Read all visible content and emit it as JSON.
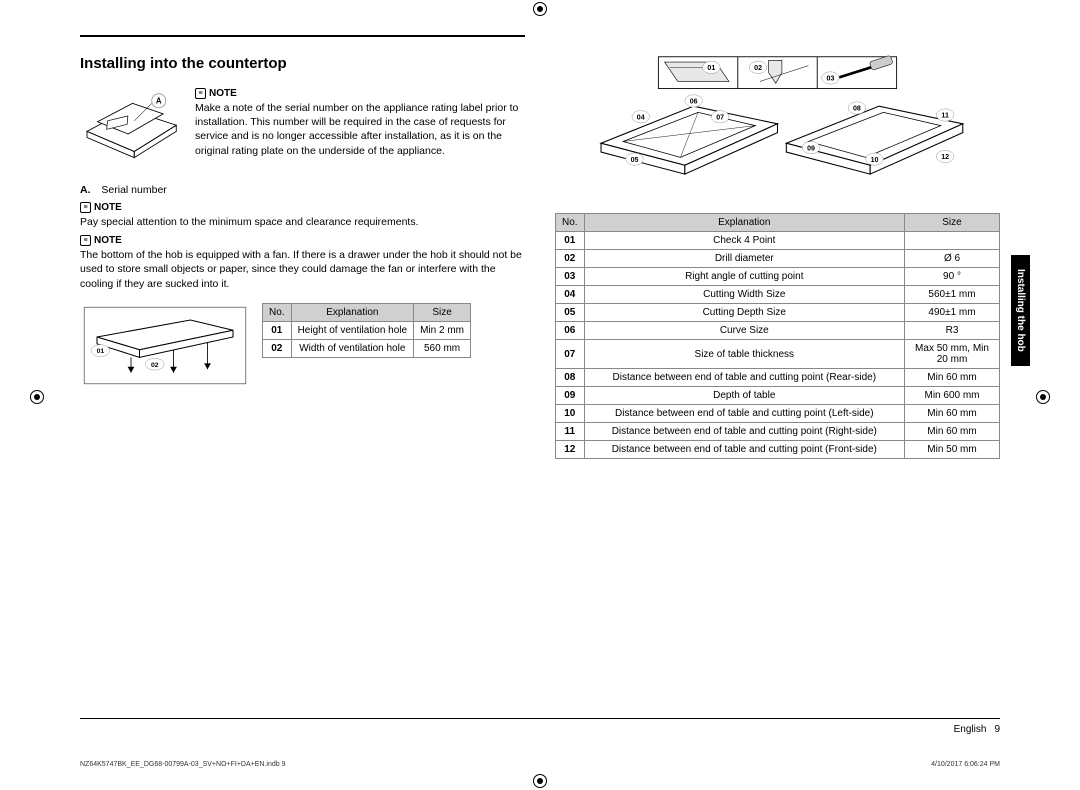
{
  "section_title": "Installing into the countertop",
  "serial_legend_label": "A.",
  "serial_legend_text": "Serial number",
  "serial_diagram_label": "A",
  "note_label": "NOTE",
  "note1": "Make a note of the serial number on the appliance rating label prior to installation. This number will be required in the case of requests for service and is no longer accessible after installation, as it is on the original rating plate on the underside of the appliance.",
  "note2": "Pay special attention to the minimum space and clearance requirements.",
  "note3": "The bottom of the hob is equipped with a fan. If there is a drawer under the hob it should not be used to store small objects or paper, since they could damage the fan or interfere with the cooling if they are sucked into it.",
  "table1": {
    "headers": [
      "No.",
      "Explanation",
      "Size"
    ],
    "rows": [
      [
        "01",
        "Height of ventilation hole",
        "Min 2 mm"
      ],
      [
        "02",
        "Width of ventilation hole",
        "560 mm"
      ]
    ]
  },
  "table2": {
    "headers": [
      "No.",
      "Explanation",
      "Size"
    ],
    "rows": [
      [
        "01",
        "Check 4 Point",
        ""
      ],
      [
        "02",
        "Drill diameter",
        "Ø 6"
      ],
      [
        "03",
        "Right angle of cutting point",
        "90 °"
      ],
      [
        "04",
        "Cutting Width Size",
        "560±1 mm"
      ],
      [
        "05",
        "Cutting Depth Size",
        "490±1 mm"
      ],
      [
        "06",
        "Curve Size",
        "R3"
      ],
      [
        "07",
        "Size of table thickness",
        "Max 50 mm, Min 20 mm"
      ],
      [
        "08",
        "Distance between end of table and cutting point (Rear-side)",
        "Min 60 mm"
      ],
      [
        "09",
        "Depth of table",
        "Min 600 mm"
      ],
      [
        "10",
        "Distance between end of table and cutting point (Left-side)",
        "Min 60 mm"
      ],
      [
        "11",
        "Distance between end of table and cutting point (Right-side)",
        "Min 60 mm"
      ],
      [
        "12",
        "Distance between end of table and cutting point (Front-side)",
        "Min 50 mm"
      ]
    ]
  },
  "vent_callouts": [
    "01",
    "02"
  ],
  "right_callouts": [
    "01",
    "02",
    "03",
    "04",
    "05",
    "06",
    "07",
    "08",
    "09",
    "10",
    "11",
    "12"
  ],
  "side_tab": "Installing the hob",
  "footer_lang": "English",
  "footer_page": "9",
  "print_file": "NZ64K5747BK_EE_DG68-00799A-03_SV+NO+FI+DA+EN.indb   9",
  "print_time": "4/10/2017   6:06:24 PM",
  "colors": {
    "header_bg": "#d0d0d0",
    "border": "#888888",
    "text": "#000000",
    "tab_bg": "#000000",
    "tab_fg": "#ffffff"
  }
}
